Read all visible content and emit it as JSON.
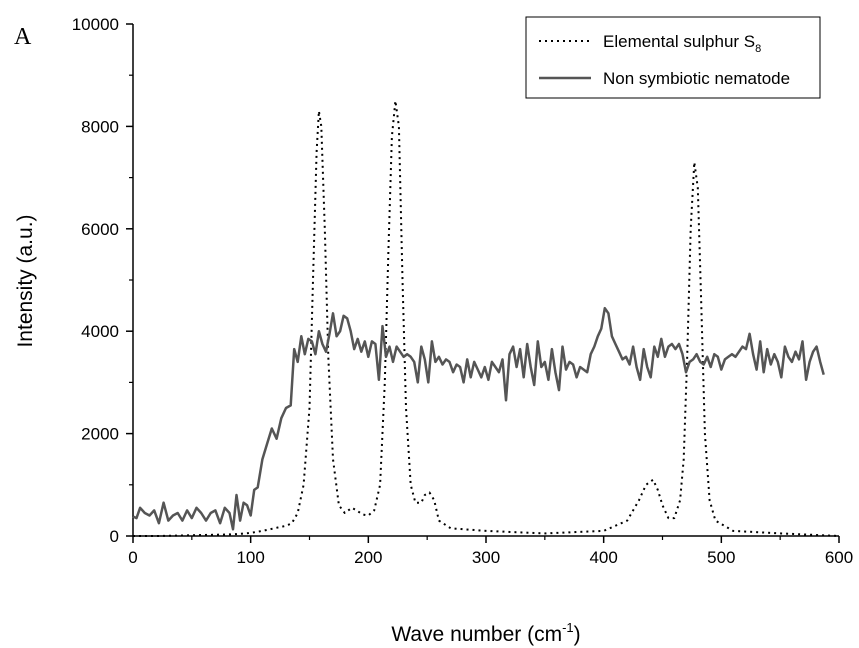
{
  "panel_label": "A",
  "chart_data": {
    "type": "line",
    "xlabel": "Wave number (cm",
    "xlabel_sup": "-1",
    "xlabel_end": ")",
    "ylabel": "Intensity (a.u.)",
    "xlim": [
      0,
      600
    ],
    "ylim": [
      0,
      10000
    ],
    "x_ticks": [
      0,
      100,
      200,
      300,
      400,
      500,
      600
    ],
    "y_ticks": [
      0,
      2000,
      4000,
      6000,
      8000,
      10000
    ],
    "grid": false,
    "legend_position": "top-right",
    "series": [
      {
        "name": "Elemental sulphur S",
        "name_sub": "8",
        "style": "dotted",
        "color": "#000000",
        "points": [
          [
            0,
            0
          ],
          [
            20,
            0
          ],
          [
            40,
            10
          ],
          [
            60,
            20
          ],
          [
            80,
            30
          ],
          [
            90,
            40
          ],
          [
            100,
            60
          ],
          [
            110,
            100
          ],
          [
            120,
            150
          ],
          [
            130,
            200
          ],
          [
            135,
            250
          ],
          [
            140,
            450
          ],
          [
            145,
            1000
          ],
          [
            150,
            2500
          ],
          [
            153,
            5000
          ],
          [
            156,
            7500
          ],
          [
            158,
            8300
          ],
          [
            160,
            8000
          ],
          [
            163,
            6000
          ],
          [
            166,
            3500
          ],
          [
            170,
            1500
          ],
          [
            175,
            600
          ],
          [
            180,
            450
          ],
          [
            186,
            550
          ],
          [
            190,
            500
          ],
          [
            195,
            420
          ],
          [
            200,
            400
          ],
          [
            205,
            500
          ],
          [
            210,
            1000
          ],
          [
            214,
            3000
          ],
          [
            217,
            5500
          ],
          [
            220,
            7800
          ],
          [
            223,
            8500
          ],
          [
            226,
            8000
          ],
          [
            229,
            5000
          ],
          [
            232,
            2500
          ],
          [
            236,
            1000
          ],
          [
            240,
            650
          ],
          [
            245,
            650
          ],
          [
            248,
            800
          ],
          [
            252,
            850
          ],
          [
            256,
            700
          ],
          [
            260,
            300
          ],
          [
            270,
            150
          ],
          [
            300,
            100
          ],
          [
            350,
            50
          ],
          [
            400,
            100
          ],
          [
            420,
            300
          ],
          [
            430,
            700
          ],
          [
            436,
            1000
          ],
          [
            442,
            1100
          ],
          [
            446,
            900
          ],
          [
            450,
            600
          ],
          [
            455,
            350
          ],
          [
            460,
            350
          ],
          [
            465,
            700
          ],
          [
            468,
            1500
          ],
          [
            471,
            3500
          ],
          [
            474,
            6000
          ],
          [
            477,
            7300
          ],
          [
            480,
            6800
          ],
          [
            483,
            4500
          ],
          [
            486,
            2000
          ],
          [
            490,
            700
          ],
          [
            495,
            300
          ],
          [
            510,
            100
          ],
          [
            550,
            50
          ],
          [
            600,
            0
          ]
        ]
      },
      {
        "name": "Non symbiotic nematode",
        "style": "solid",
        "color": "#555555",
        "points": [
          [
            0,
            380
          ],
          [
            3,
            350
          ],
          [
            6,
            550
          ],
          [
            10,
            450
          ],
          [
            14,
            400
          ],
          [
            18,
            500
          ],
          [
            22,
            250
          ],
          [
            26,
            650
          ],
          [
            30,
            300
          ],
          [
            34,
            400
          ],
          [
            38,
            450
          ],
          [
            42,
            300
          ],
          [
            46,
            500
          ],
          [
            50,
            350
          ],
          [
            54,
            550
          ],
          [
            58,
            450
          ],
          [
            62,
            300
          ],
          [
            66,
            450
          ],
          [
            70,
            500
          ],
          [
            74,
            250
          ],
          [
            78,
            550
          ],
          [
            82,
            450
          ],
          [
            85,
            130
          ],
          [
            88,
            800
          ],
          [
            91,
            300
          ],
          [
            94,
            650
          ],
          [
            97,
            600
          ],
          [
            100,
            400
          ],
          [
            103,
            900
          ],
          [
            106,
            950
          ],
          [
            110,
            1500
          ],
          [
            114,
            1800
          ],
          [
            118,
            2100
          ],
          [
            122,
            1900
          ],
          [
            126,
            2300
          ],
          [
            130,
            2500
          ],
          [
            134,
            2550
          ],
          [
            137,
            3650
          ],
          [
            140,
            3400
          ],
          [
            143,
            3900
          ],
          [
            146,
            3550
          ],
          [
            149,
            3850
          ],
          [
            152,
            3800
          ],
          [
            155,
            3550
          ],
          [
            158,
            4000
          ],
          [
            161,
            3750
          ],
          [
            164,
            3600
          ],
          [
            167,
            3950
          ],
          [
            170,
            4350
          ],
          [
            173,
            3900
          ],
          [
            176,
            4000
          ],
          [
            179,
            4300
          ],
          [
            182,
            4250
          ],
          [
            185,
            4000
          ],
          [
            188,
            3650
          ],
          [
            191,
            3850
          ],
          [
            194,
            3600
          ],
          [
            197,
            3800
          ],
          [
            200,
            3500
          ],
          [
            203,
            3800
          ],
          [
            206,
            3750
          ],
          [
            209,
            3050
          ],
          [
            212,
            4100
          ],
          [
            215,
            3500
          ],
          [
            218,
            3700
          ],
          [
            221,
            3400
          ],
          [
            224,
            3700
          ],
          [
            227,
            3600
          ],
          [
            230,
            3500
          ],
          [
            233,
            3550
          ],
          [
            236,
            3500
          ],
          [
            239,
            3400
          ],
          [
            242,
            3000
          ],
          [
            245,
            3700
          ],
          [
            248,
            3450
          ],
          [
            251,
            3000
          ],
          [
            254,
            3800
          ],
          [
            257,
            3400
          ],
          [
            260,
            3500
          ],
          [
            263,
            3350
          ],
          [
            266,
            3450
          ],
          [
            269,
            3400
          ],
          [
            272,
            3200
          ],
          [
            275,
            3350
          ],
          [
            278,
            3300
          ],
          [
            281,
            3000
          ],
          [
            284,
            3450
          ],
          [
            287,
            3100
          ],
          [
            290,
            3400
          ],
          [
            293,
            3250
          ],
          [
            296,
            3100
          ],
          [
            299,
            3300
          ],
          [
            302,
            3050
          ],
          [
            305,
            3400
          ],
          [
            308,
            3300
          ],
          [
            311,
            3200
          ],
          [
            314,
            3450
          ],
          [
            317,
            2650
          ],
          [
            320,
            3550
          ],
          [
            323,
            3700
          ],
          [
            326,
            3300
          ],
          [
            329,
            3650
          ],
          [
            332,
            3100
          ],
          [
            335,
            3750
          ],
          [
            338,
            3300
          ],
          [
            341,
            2950
          ],
          [
            344,
            3800
          ],
          [
            347,
            3300
          ],
          [
            350,
            3400
          ],
          [
            353,
            3050
          ],
          [
            356,
            3650
          ],
          [
            359,
            3200
          ],
          [
            362,
            2850
          ],
          [
            365,
            3700
          ],
          [
            368,
            3250
          ],
          [
            371,
            3400
          ],
          [
            374,
            3350
          ],
          [
            377,
            3100
          ],
          [
            380,
            3300
          ],
          [
            383,
            3250
          ],
          [
            386,
            3200
          ],
          [
            389,
            3550
          ],
          [
            392,
            3700
          ],
          [
            395,
            3900
          ],
          [
            398,
            4050
          ],
          [
            401,
            4450
          ],
          [
            404,
            4350
          ],
          [
            407,
            3900
          ],
          [
            410,
            3750
          ],
          [
            413,
            3600
          ],
          [
            416,
            3450
          ],
          [
            419,
            3500
          ],
          [
            422,
            3350
          ],
          [
            425,
            3700
          ],
          [
            428,
            3300
          ],
          [
            431,
            3050
          ],
          [
            434,
            3650
          ],
          [
            437,
            3300
          ],
          [
            440,
            3100
          ],
          [
            443,
            3700
          ],
          [
            446,
            3500
          ],
          [
            449,
            3850
          ],
          [
            452,
            3500
          ],
          [
            455,
            3700
          ],
          [
            458,
            3750
          ],
          [
            461,
            3650
          ],
          [
            464,
            3750
          ],
          [
            467,
            3550
          ],
          [
            470,
            3200
          ],
          [
            473,
            3400
          ],
          [
            476,
            3450
          ],
          [
            479,
            3550
          ],
          [
            482,
            3400
          ],
          [
            485,
            3350
          ],
          [
            488,
            3500
          ],
          [
            491,
            3300
          ],
          [
            494,
            3550
          ],
          [
            497,
            3500
          ],
          [
            500,
            3250
          ],
          [
            503,
            3450
          ],
          [
            506,
            3500
          ],
          [
            509,
            3550
          ],
          [
            512,
            3500
          ],
          [
            515,
            3600
          ],
          [
            518,
            3700
          ],
          [
            521,
            3650
          ],
          [
            524,
            3950
          ],
          [
            527,
            3550
          ],
          [
            530,
            3250
          ],
          [
            533,
            3800
          ],
          [
            536,
            3200
          ],
          [
            539,
            3650
          ],
          [
            542,
            3350
          ],
          [
            545,
            3550
          ],
          [
            548,
            3400
          ],
          [
            551,
            3100
          ],
          [
            554,
            3700
          ],
          [
            557,
            3500
          ],
          [
            560,
            3400
          ],
          [
            563,
            3600
          ],
          [
            566,
            3450
          ],
          [
            569,
            3800
          ],
          [
            572,
            3050
          ],
          [
            575,
            3400
          ],
          [
            578,
            3600
          ],
          [
            581,
            3700
          ],
          [
            584,
            3400
          ],
          [
            587,
            3150
          ]
        ]
      }
    ]
  }
}
